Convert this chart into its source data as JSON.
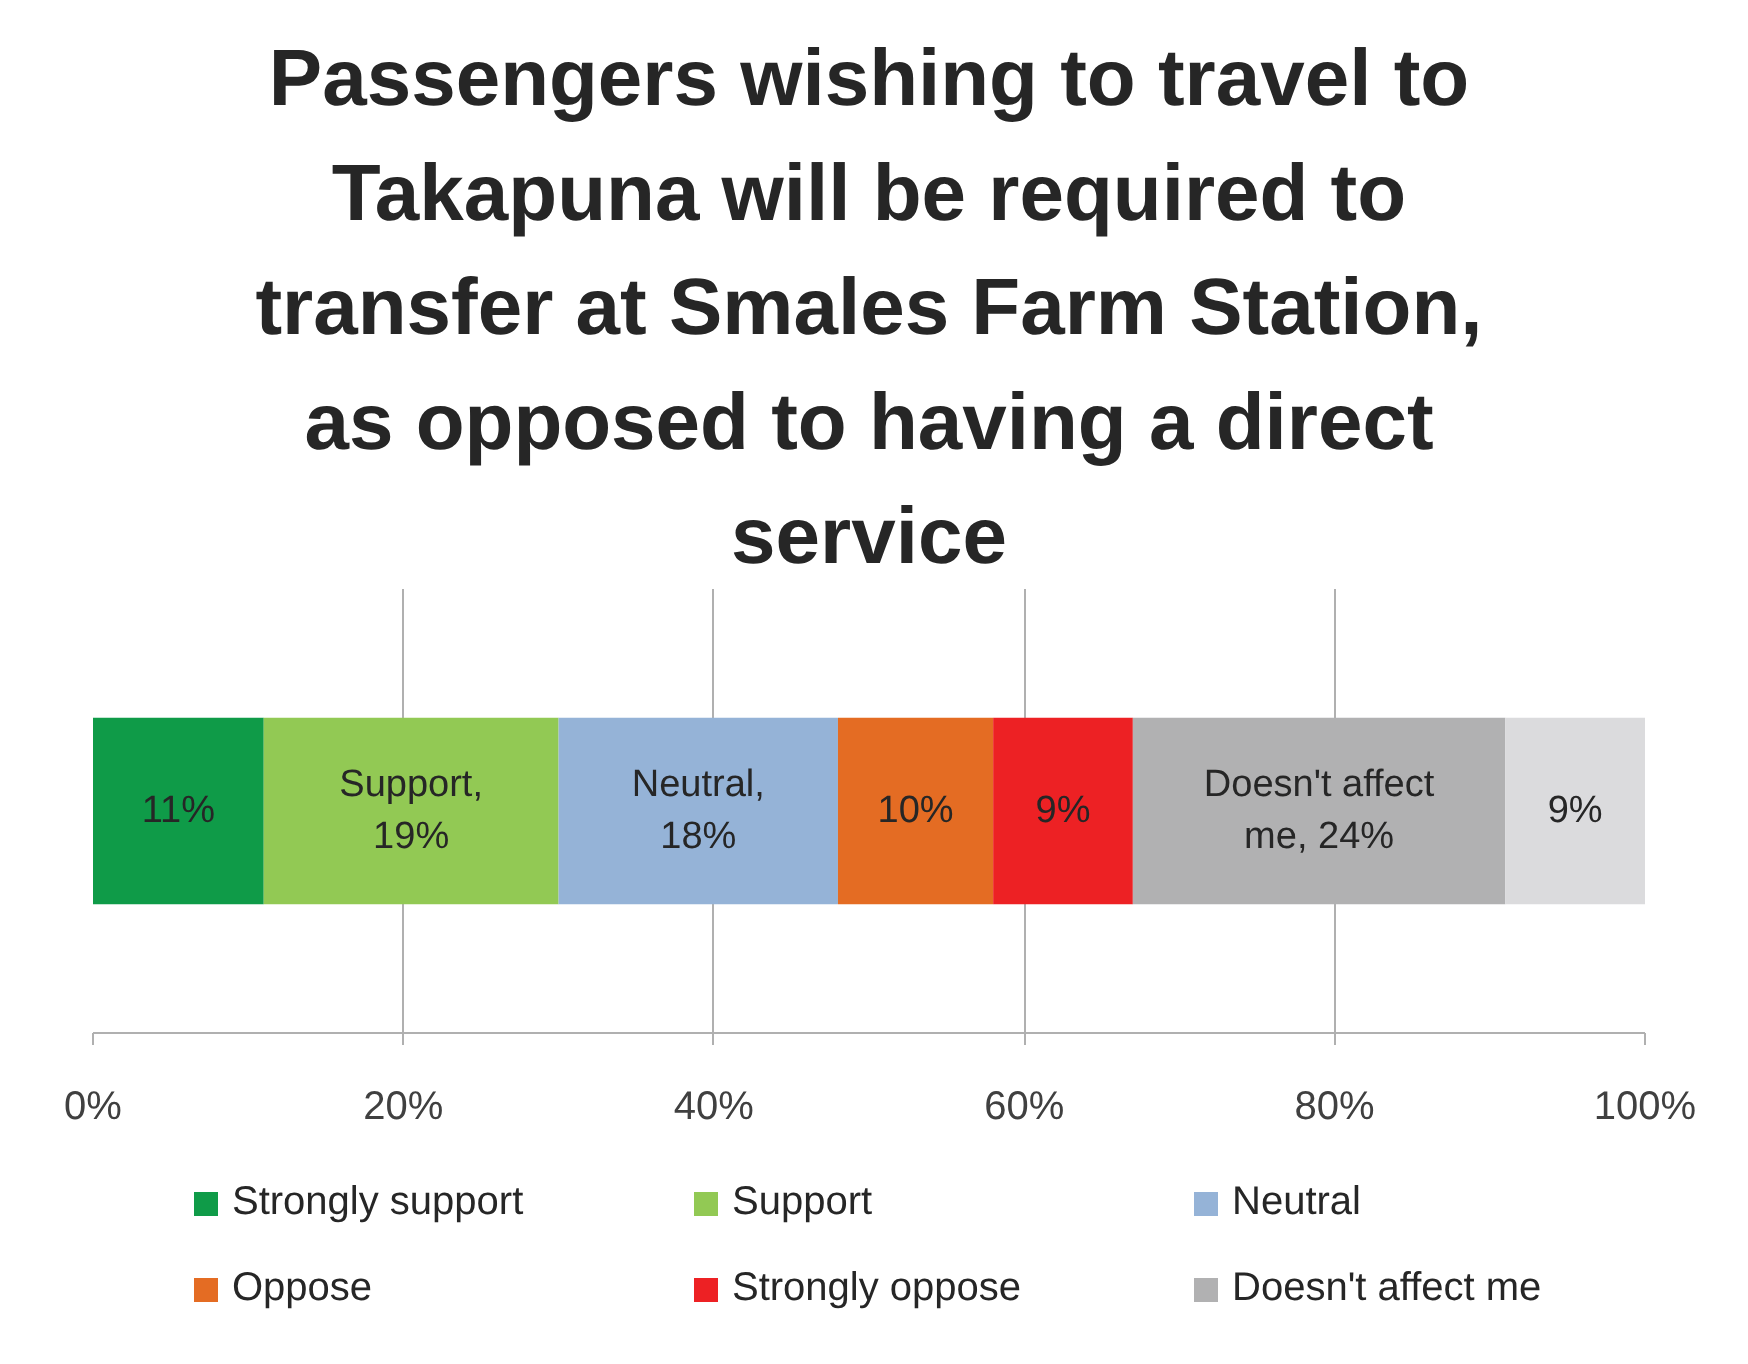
{
  "chart_data": {
    "type": "bar",
    "orientation": "horizontal",
    "stacked": true,
    "title": "Passengers wishing to travel to Takapuna will be required to transfer at Smales Farm Station, as opposed to having a direct service",
    "categories": [
      null
    ],
    "series": [
      {
        "name": "Strongly support",
        "color": "#0f9b48",
        "values": [
          11
        ],
        "value_labels": [
          "11%"
        ]
      },
      {
        "name": "Support",
        "color": "#92c954",
        "values": [
          19
        ],
        "value_labels": [
          "Support, 19%"
        ]
      },
      {
        "name": "Neutral",
        "color": "#95b3d7",
        "values": [
          18
        ],
        "value_labels": [
          "Neutral, 18%"
        ]
      },
      {
        "name": "Oppose",
        "color": "#e46c23",
        "values": [
          10
        ],
        "value_labels": [
          "10%"
        ]
      },
      {
        "name": "Strongly oppose",
        "color": "#ed2124",
        "values": [
          9
        ],
        "value_labels": [
          "9%"
        ]
      },
      {
        "name": "Doesn't affect me",
        "color": "#b1b1b2",
        "values": [
          24
        ],
        "value_labels": [
          "Doesn't affect me, 24%"
        ]
      },
      {
        "color": "#dbdbdd",
        "values": [
          9
        ],
        "value_labels": [
          "9%"
        ]
      }
    ],
    "xlim": [
      0,
      100
    ],
    "xticks": [
      {
        "value": 0,
        "label": "0%"
      },
      {
        "value": 20,
        "label": "20%"
      },
      {
        "value": 40,
        "label": "40%"
      },
      {
        "value": 60,
        "label": "60%"
      },
      {
        "value": 80,
        "label": "80%"
      },
      {
        "value": 100,
        "label": "100%"
      }
    ],
    "grid": "x",
    "legend": "bottom",
    "tick_labels": "x"
  }
}
